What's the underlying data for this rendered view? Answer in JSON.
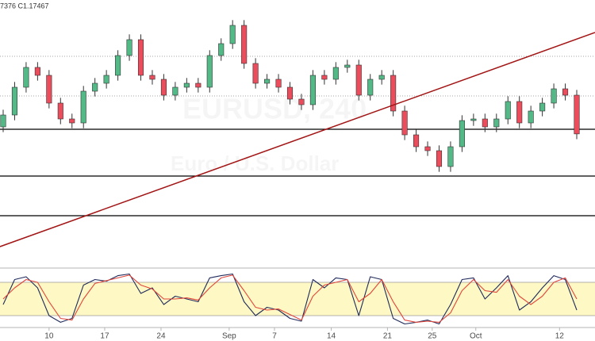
{
  "chart_data": {
    "type": "candlestick",
    "ohlc_label": "7376  C1.17467",
    "watermark": [
      "EURUSD, 240",
      "Euro / U.S. Dollar"
    ],
    "up_color": "#53b987",
    "down_color": "#eb4d5c",
    "xlim": [
      0,
      50
    ],
    "xticks": [
      {
        "value": 4,
        "label": "10"
      },
      {
        "value": 8.85,
        "label": "17"
      },
      {
        "value": 13.76,
        "label": "24"
      },
      {
        "value": 19.7,
        "label": "Sep"
      },
      {
        "value": 23.65,
        "label": "7"
      },
      {
        "value": 28.6,
        "label": "14"
      },
      {
        "value": 33.5,
        "label": "21"
      },
      {
        "value": 37.4,
        "label": "25"
      },
      {
        "value": 41.2,
        "label": "Oct"
      },
      {
        "value": 48.5,
        "label": "12"
      }
    ],
    "ylim": [
      1.152,
      1.2
    ],
    "open": [
      1.176,
      1.17825,
      1.1835,
      1.18725,
      1.18575,
      1.1805,
      1.1775,
      1.17675,
      1.18275,
      1.18425,
      1.18575,
      1.1895,
      1.1925,
      1.18575,
      1.185,
      1.182,
      1.1835,
      1.18425,
      1.1835,
      1.1895,
      1.19175,
      1.1952,
      1.188,
      1.18425,
      1.185,
      1.1835,
      1.18125,
      1.1802,
      1.18575,
      1.185,
      1.18725,
      1.1877,
      1.182,
      1.185,
      1.18575,
      1.179,
      1.1745,
      1.17225,
      1.1715,
      1.1685,
      1.17225,
      1.1772,
      1.1775,
      1.176,
      1.1775,
      1.1808,
      1.17675,
      1.179,
      1.1805,
      1.1832,
      1.182
    ],
    "high": [
      1.17925,
      1.1845,
      1.18825,
      1.18825,
      1.18675,
      1.1815,
      1.1785,
      1.18375,
      1.18525,
      1.18675,
      1.1905,
      1.1935,
      1.1935,
      1.18675,
      1.186,
      1.1845,
      1.18525,
      1.18525,
      1.1905,
      1.19275,
      1.1962,
      1.1962,
      1.189,
      1.186,
      1.186,
      1.1845,
      1.18225,
      1.18675,
      1.18675,
      1.18825,
      1.1887,
      1.1887,
      1.186,
      1.18675,
      1.18675,
      1.18,
      1.1755,
      1.17325,
      1.1725,
      1.17325,
      1.1782,
      1.1785,
      1.1785,
      1.1785,
      1.1818,
      1.1818,
      1.18,
      1.1815,
      1.1842,
      1.1842,
      1.183
    ],
    "low": [
      1.175,
      1.17725,
      1.1825,
      1.18475,
      1.1795,
      1.1765,
      1.17575,
      1.17575,
      1.18175,
      1.18325,
      1.18475,
      1.1885,
      1.18475,
      1.184,
      1.181,
      1.181,
      1.1825,
      1.1825,
      1.1825,
      1.1885,
      1.19075,
      1.187,
      1.18325,
      1.18325,
      1.1825,
      1.18025,
      1.1792,
      1.1792,
      1.184,
      1.184,
      1.18625,
      1.181,
      1.181,
      1.184,
      1.178,
      1.1735,
      1.17125,
      1.1705,
      1.1675,
      1.1675,
      1.17125,
      1.1762,
      1.175,
      1.175,
      1.1765,
      1.17575,
      1.17575,
      1.178,
      1.1795,
      1.181,
      1.17367
    ],
    "close": [
      1.17825,
      1.1835,
      1.18725,
      1.18575,
      1.1805,
      1.1775,
      1.17675,
      1.18275,
      1.18425,
      1.18575,
      1.1895,
      1.1925,
      1.18575,
      1.185,
      1.182,
      1.1835,
      1.18425,
      1.1835,
      1.1895,
      1.19175,
      1.1952,
      1.188,
      1.18425,
      1.185,
      1.1835,
      1.18125,
      1.1802,
      1.18575,
      1.185,
      1.18725,
      1.1877,
      1.182,
      1.185,
      1.18575,
      1.179,
      1.1745,
      1.17225,
      1.1715,
      1.1685,
      1.17225,
      1.1772,
      1.1775,
      1.176,
      1.1775,
      1.1808,
      1.17675,
      1.179,
      1.1805,
      1.1832,
      1.182,
      1.17467
    ],
    "levels": [
      1.17555,
      1.1667,
      1.1592
    ],
    "level_color": "#000000",
    "dotted_levels": [
      1.18935,
      1.18185
    ],
    "trendline": {
      "x": [
        -0.28,
        51.59
      ],
      "y": [
        1.15335,
        1.19385
      ],
      "color": "#a31515"
    },
    "oscillator": {
      "ylim": [
        0,
        100
      ],
      "band": [
        20,
        80
      ],
      "band_color": "#fdf8c4",
      "series": [
        {
          "color": "#1f2a5a",
          "values": [
            40,
            85,
            90,
            70,
            20,
            8,
            15,
            75,
            85,
            82,
            92,
            95,
            60,
            70,
            40,
            55,
            50,
            45,
            88,
            92,
            95,
            45,
            20,
            35,
            30,
            15,
            10,
            85,
            70,
            88,
            85,
            20,
            90,
            85,
            15,
            5,
            8,
            12,
            5,
            40,
            85,
            88,
            50,
            70,
            92,
            30,
            45,
            70,
            92,
            85,
            30
          ]
        },
        {
          "color": "#e0463a",
          "values": [
            50,
            70,
            85,
            80,
            45,
            15,
            12,
            50,
            78,
            83,
            88,
            93,
            75,
            68,
            50,
            50,
            52,
            48,
            70,
            88,
            93,
            65,
            35,
            30,
            32,
            22,
            12,
            55,
            75,
            80,
            85,
            45,
            60,
            85,
            45,
            12,
            8,
            10,
            8,
            25,
            65,
            85,
            65,
            62,
            85,
            55,
            40,
            55,
            80,
            88,
            50
          ]
        }
      ]
    }
  }
}
